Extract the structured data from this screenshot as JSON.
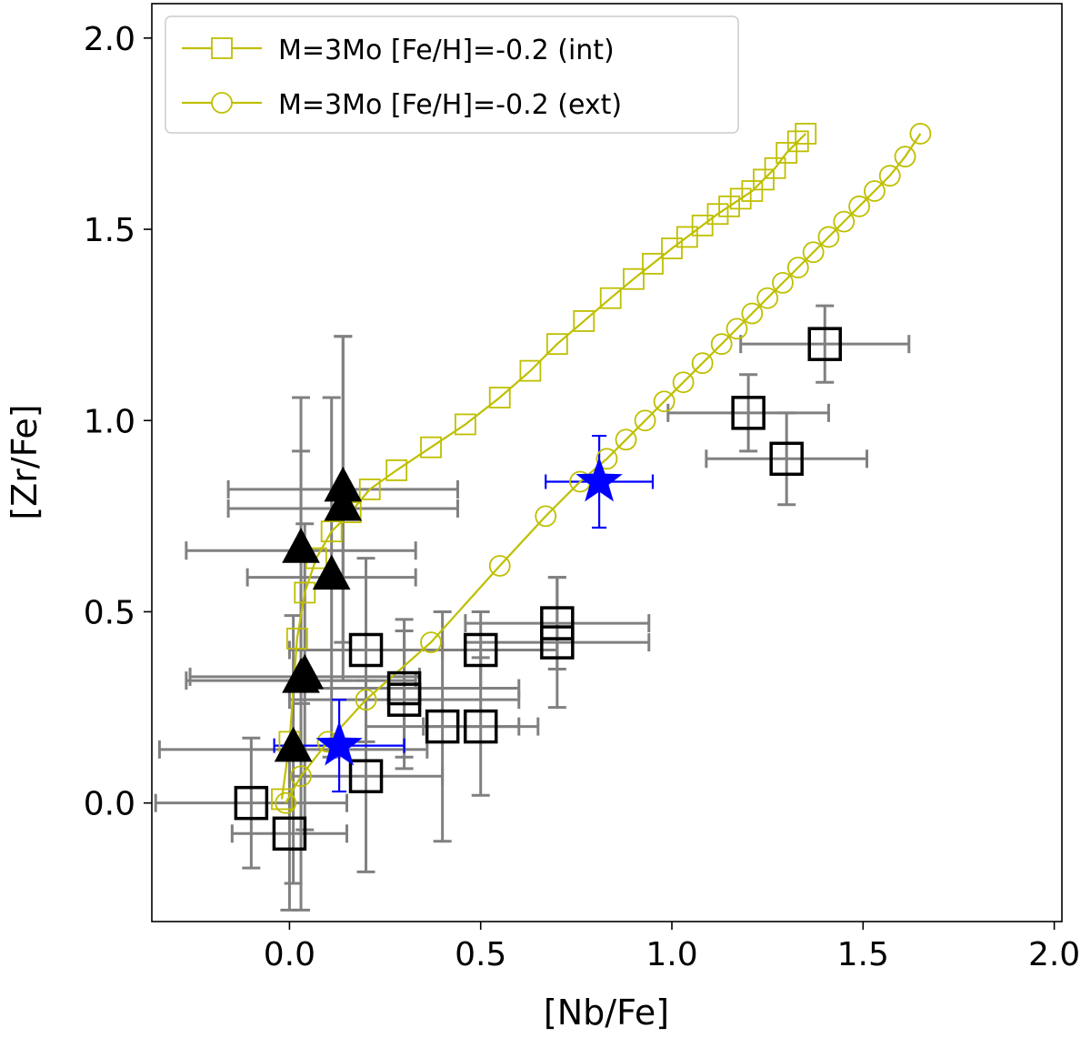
{
  "chart_data": {
    "type": "scatter",
    "xlabel": "[Nb/Fe]",
    "ylabel": "[Zr/Fe]",
    "xlim": [
      -0.36,
      2.02
    ],
    "ylim": [
      -0.31,
      2.09
    ],
    "xticks": [
      0.0,
      0.5,
      1.0,
      1.5,
      2.0
    ],
    "yticks": [
      0.0,
      0.5,
      1.0,
      1.5,
      2.0
    ],
    "xtick_labels": [
      "0.0",
      "0.5",
      "1.0",
      "1.5",
      "2.0"
    ],
    "ytick_labels": [
      "0.0",
      "0.5",
      "1.0",
      "1.5",
      "2.0"
    ],
    "legend_position": "top-left",
    "colors": {
      "model": "#bfbf00",
      "obs": "#000000",
      "obs_err": "#808080",
      "blue": "#0000ff"
    },
    "series": [
      {
        "name": "M=3Mo [Fe/H]=-0.2 (int)",
        "marker": "square-open",
        "color": "#bfbf00",
        "x": [
          -0.02,
          0.0,
          0.02,
          0.04,
          0.07,
          0.11,
          0.16,
          0.21,
          0.28,
          0.37,
          0.46,
          0.55,
          0.63,
          0.7,
          0.77,
          0.84,
          0.9,
          0.95,
          1.0,
          1.04,
          1.08,
          1.12,
          1.15,
          1.18,
          1.21,
          1.24,
          1.27,
          1.3,
          1.33,
          1.35
        ],
        "y": [
          0.01,
          0.16,
          0.43,
          0.55,
          0.64,
          0.71,
          0.76,
          0.82,
          0.87,
          0.93,
          0.99,
          1.06,
          1.13,
          1.2,
          1.26,
          1.32,
          1.37,
          1.41,
          1.45,
          1.48,
          1.51,
          1.54,
          1.56,
          1.58,
          1.6,
          1.63,
          1.66,
          1.7,
          1.73,
          1.75
        ]
      },
      {
        "name": "M=3Mo [Fe/H]=-0.2 (ext)",
        "marker": "circle-open",
        "color": "#bfbf00",
        "x": [
          -0.01,
          0.03,
          0.1,
          0.2,
          0.37,
          0.55,
          0.67,
          0.76,
          0.83,
          0.88,
          0.93,
          0.98,
          1.03,
          1.08,
          1.13,
          1.17,
          1.21,
          1.25,
          1.29,
          1.33,
          1.37,
          1.41,
          1.45,
          1.49,
          1.53,
          1.57,
          1.61,
          1.65
        ],
        "y": [
          0.0,
          0.07,
          0.16,
          0.27,
          0.42,
          0.62,
          0.75,
          0.84,
          0.9,
          0.95,
          1.0,
          1.05,
          1.1,
          1.15,
          1.2,
          1.24,
          1.28,
          1.32,
          1.36,
          1.4,
          1.44,
          1.48,
          1.52,
          1.56,
          1.6,
          1.64,
          1.69,
          1.75
        ]
      },
      {
        "name": "open squares",
        "marker": "square-open-bold",
        "color": "#000000",
        "points": [
          {
            "x": -0.1,
            "y": 0.0,
            "xerr": 0.25,
            "yerr": 0.17
          },
          {
            "x": 0.0,
            "y": -0.08,
            "xerr": 0.15,
            "yerr": 0.2
          },
          {
            "x": 0.2,
            "y": 0.07,
            "xerr": 0.2,
            "yerr": 0.25
          },
          {
            "x": 0.2,
            "y": 0.4,
            "xerr": 0.2,
            "yerr": 0.24
          },
          {
            "x": 0.3,
            "y": 0.3,
            "xerr": 0.3,
            "yerr": 0.18
          },
          {
            "x": 0.3,
            "y": 0.27,
            "xerr": 0.3,
            "yerr": 0.18
          },
          {
            "x": 0.4,
            "y": 0.2,
            "xerr": 0.2,
            "yerr": 0.3
          },
          {
            "x": 0.5,
            "y": 0.2,
            "xerr": 0.15,
            "yerr": 0.18
          },
          {
            "x": 0.5,
            "y": 0.4,
            "xerr": 0.2,
            "yerr": 0.1
          },
          {
            "x": 0.7,
            "y": 0.47,
            "xerr": 0.24,
            "yerr": 0.12
          },
          {
            "x": 0.7,
            "y": 0.42,
            "xerr": 0.24,
            "yerr": 0.17
          },
          {
            "x": 1.2,
            "y": 1.02,
            "xerr": 0.21,
            "yerr": 0.1
          },
          {
            "x": 1.3,
            "y": 0.9,
            "xerr": 0.21,
            "yerr": 0.12
          },
          {
            "x": 1.4,
            "y": 1.2,
            "xerr": 0.22,
            "yerr": 0.1
          }
        ]
      },
      {
        "name": "filled triangles",
        "marker": "triangle-filled",
        "color": "#000000",
        "points": [
          {
            "x": 0.01,
            "y": 0.14,
            "xerr": 0.35,
            "yerr": 0.35
          },
          {
            "x": 0.04,
            "y": 0.33,
            "xerr": 0.3,
            "yerr": 0.4
          },
          {
            "x": 0.03,
            "y": 0.32,
            "xerr": 0.3,
            "yerr": 0.6
          },
          {
            "x": 0.03,
            "y": 0.66,
            "xerr": 0.3,
            "yerr": 0.4
          },
          {
            "x": 0.11,
            "y": 0.59,
            "xerr": 0.22,
            "yerr": 0.47
          },
          {
            "x": 0.14,
            "y": 0.77,
            "xerr": 0.3,
            "yerr": 0.45
          },
          {
            "x": 0.14,
            "y": 0.82,
            "xerr": 0.3,
            "yerr": 0.4
          }
        ]
      },
      {
        "name": "blue stars",
        "marker": "star-filled",
        "color": "#0000ff",
        "points": [
          {
            "x": 0.13,
            "y": 0.15,
            "xerr": 0.17,
            "yerr": 0.12
          },
          {
            "x": 0.81,
            "y": 0.84,
            "xerr": 0.14,
            "yerr": 0.12
          }
        ]
      }
    ]
  }
}
